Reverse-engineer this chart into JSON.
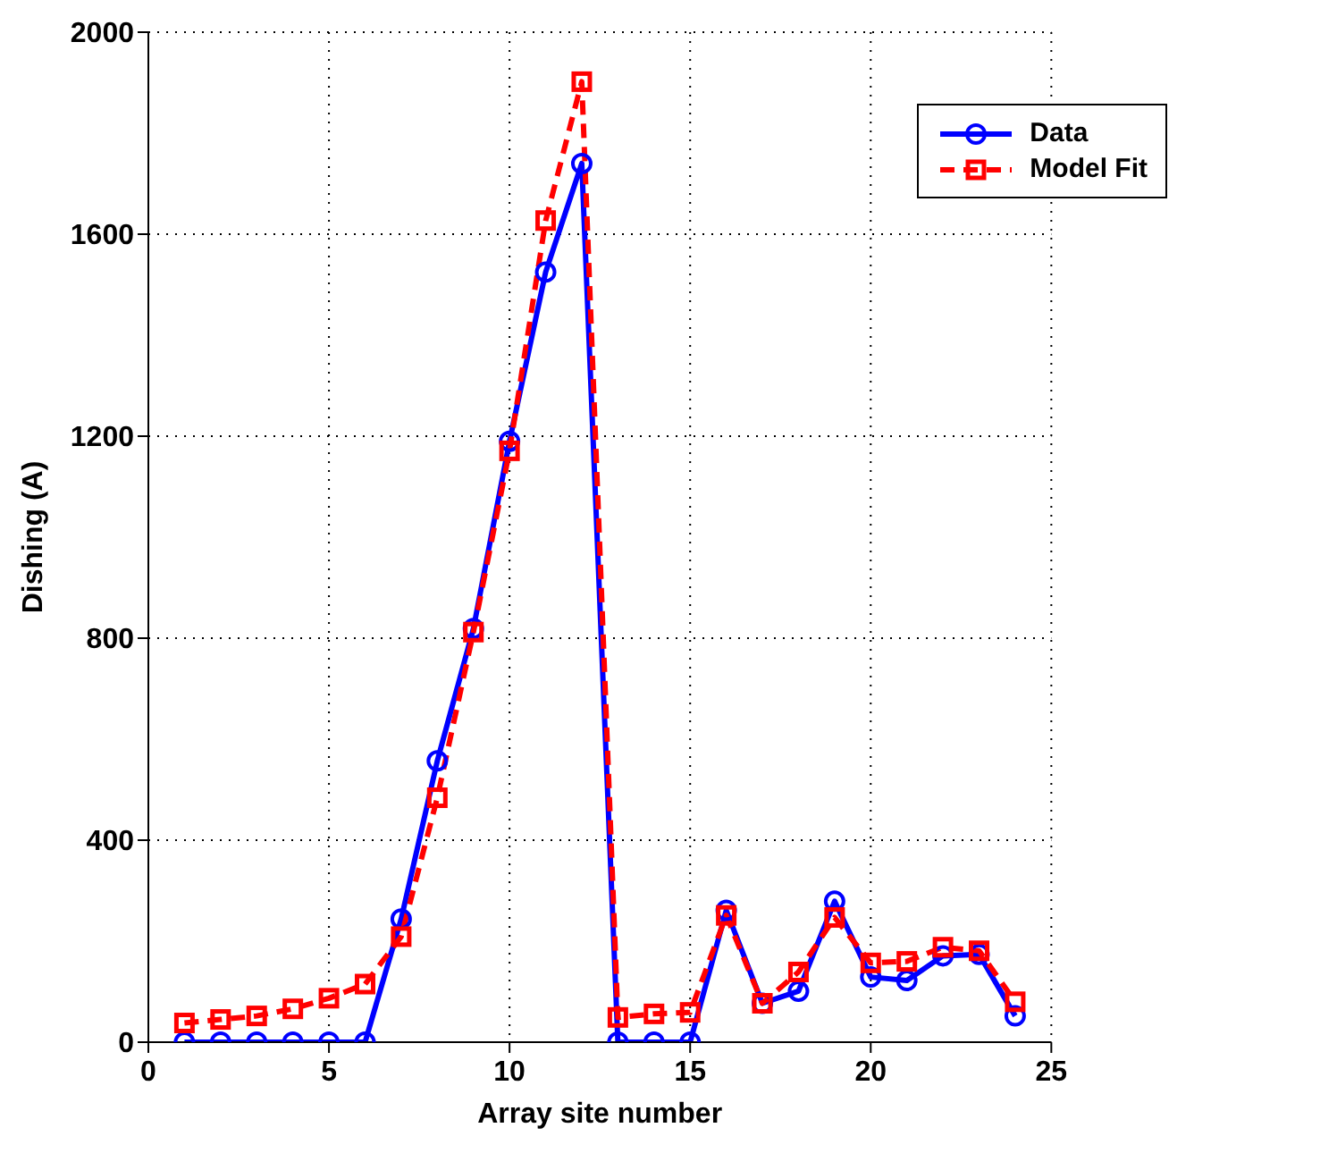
{
  "chart_data": {
    "type": "line",
    "xlabel": "Array site number",
    "ylabel": "Dishing (A)",
    "x": [
      1,
      2,
      3,
      4,
      5,
      6,
      7,
      8,
      9,
      10,
      11,
      12,
      13,
      14,
      15,
      16,
      17,
      18,
      19,
      20,
      21,
      22,
      23,
      24
    ],
    "xlim": [
      0,
      25
    ],
    "xticks": [
      0,
      5,
      10,
      15,
      20,
      25
    ],
    "ylim": [
      0,
      2000
    ],
    "yticks": [
      0,
      400,
      800,
      1200,
      1600,
      2000
    ],
    "grid": true,
    "legend": "top right",
    "series": [
      {
        "name": "Data",
        "color": "#0000ff",
        "marker": "circle",
        "line_style": "solid",
        "values": [
          0,
          0,
          0,
          0,
          0,
          0,
          244,
          557,
          819,
          1190,
          1525,
          1740,
          0,
          0,
          0,
          261,
          77,
          101,
          279,
          129,
          122,
          171,
          174,
          52
        ]
      },
      {
        "name": "Model Fit",
        "color": "#ff0000",
        "marker": "square",
        "line_style": "dashed",
        "values": [
          38,
          45,
          52,
          66,
          87,
          115,
          209,
          484,
          812,
          1171,
          1627,
          1902,
          49,
          56,
          59,
          251,
          77,
          139,
          247,
          157,
          160,
          188,
          181,
          80
        ]
      }
    ]
  }
}
